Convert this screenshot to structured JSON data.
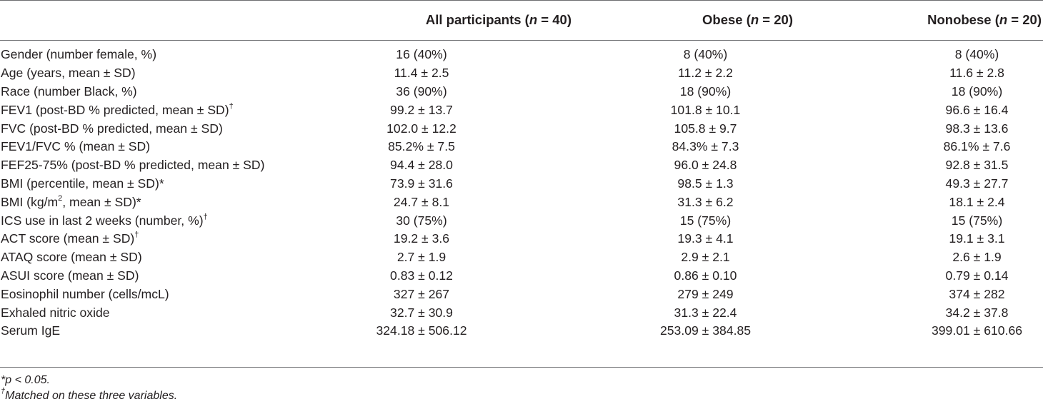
{
  "header": {
    "col1_label": "All participants (",
    "col1_n": "n",
    "col1_tail": " = 40)",
    "col2_label": "Obese (",
    "col2_n": "n",
    "col2_tail": " = 20)",
    "col3_label": "Nonobese (",
    "col3_n": "n",
    "col3_tail": " = 20)"
  },
  "rows": [
    {
      "label": "Gender (number female, %)",
      "mark": "",
      "all": "16 (40%)",
      "obese": "8 (40%)",
      "nonobese": "8 (40%)"
    },
    {
      "label": "Age (years, mean ± SD)",
      "mark": "",
      "all": "11.4 ± 2.5",
      "obese": "11.2 ± 2.2",
      "nonobese": "11.6 ± 2.8"
    },
    {
      "label": "Race (number Black, %)",
      "mark": "",
      "all": "36 (90%)",
      "obese": "18 (90%)",
      "nonobese": "18 (90%)"
    },
    {
      "label": "FEV1 (post-BD % predicted, mean ± SD)",
      "mark": "†",
      "all": "99.2 ± 13.7",
      "obese": "101.8 ± 10.1",
      "nonobese": "96.6 ± 16.4"
    },
    {
      "label": "FVC (post-BD % predicted, mean ± SD)",
      "mark": "",
      "all": "102.0 ± 12.2",
      "obese": "105.8 ± 9.7",
      "nonobese": "98.3 ± 13.6"
    },
    {
      "label": "FEV1/FVC % (mean ± SD)",
      "mark": "",
      "all": "85.2% ± 7.5",
      "obese": "84.3% ± 7.3",
      "nonobese": "86.1% ± 7.6"
    },
    {
      "label": "FEF25-75% (post-BD % predicted, mean ± SD)",
      "mark": "",
      "all": "94.4 ± 28.0",
      "obese": "96.0 ± 24.8",
      "nonobese": "92.8 ± 31.5"
    },
    {
      "label": "BMI (percentile, mean ± SD)*",
      "mark": "",
      "all": "73.9 ± 31.6",
      "obese": "98.5 ± 1.3",
      "nonobese": "49.3 ± 27.7"
    },
    {
      "label_pre": "BMI (kg/m",
      "label_sup": "2",
      "label_post": ", mean ± SD)*",
      "all": "24.7 ± 8.1",
      "obese": "31.3 ± 6.2",
      "nonobese": "18.1 ± 2.4"
    },
    {
      "label": "ICS use in last 2 weeks (number, %)",
      "mark": "†",
      "all": "30 (75%)",
      "obese": "15 (75%)",
      "nonobese": "15 (75%)"
    },
    {
      "label": "ACT score (mean ± SD)",
      "mark": "†",
      "all": "19.2 ± 3.6",
      "obese": "19.3 ± 4.1",
      "nonobese": "19.1 ± 3.1"
    },
    {
      "label": "ATAQ score (mean ± SD)",
      "mark": "",
      "all": "2.7 ± 1.9",
      "obese": "2.9 ± 2.1",
      "nonobese": "2.6 ± 1.9"
    },
    {
      "label": "ASUI score (mean ± SD)",
      "mark": "",
      "all": "0.83 ± 0.12",
      "obese": "0.86 ± 0.10",
      "nonobese": "0.79 ± 0.14"
    },
    {
      "label": "Eosinophil number (cells/mcL)",
      "mark": "",
      "all": "327 ± 267",
      "obese": "279 ± 249",
      "nonobese": "374 ± 282"
    },
    {
      "label": "Exhaled nitric oxide",
      "mark": "",
      "all": "32.7 ± 30.9",
      "obese": "31.3 ± 22.4",
      "nonobese": "34.2 ± 37.8"
    },
    {
      "label": "Serum IgE",
      "mark": "",
      "all": "324.18 ± 506.12",
      "obese": "253.09 ± 384.85",
      "nonobese": "399.01 ± 610.66"
    }
  ],
  "footnotes": {
    "fn1": "*p < 0.05.",
    "fn2_mark": "†",
    "fn2_text": "Matched on these three variables."
  }
}
